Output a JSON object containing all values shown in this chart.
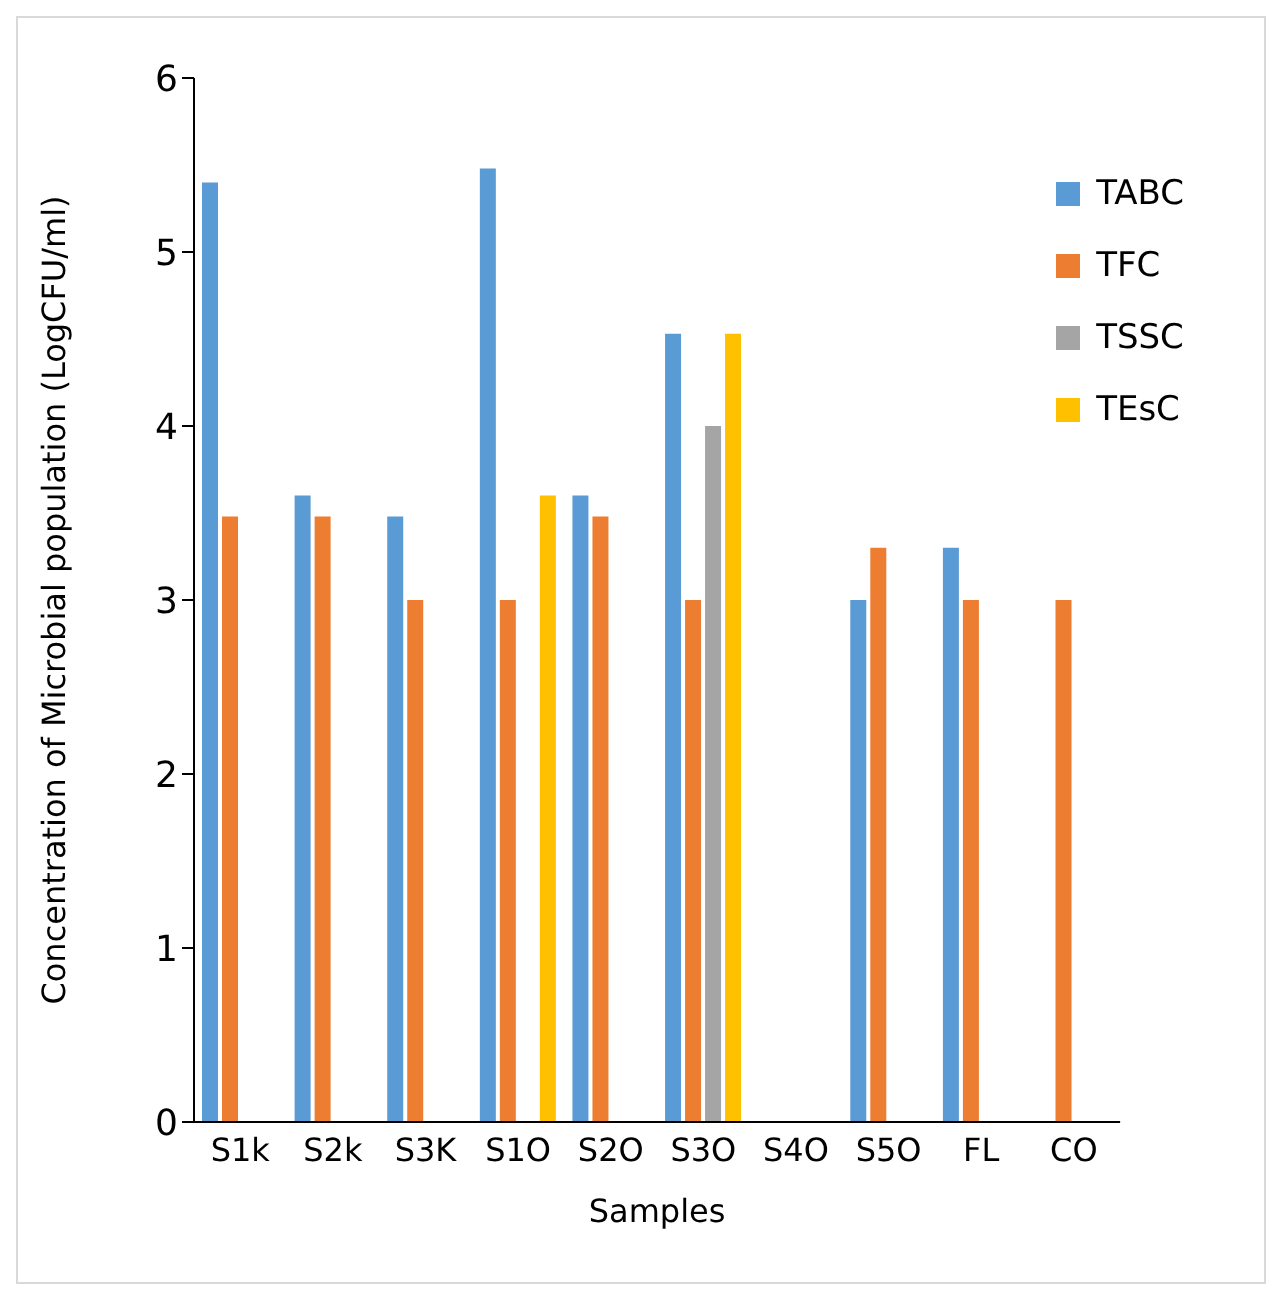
{
  "chart_data": {
    "type": "bar",
    "xlabel": "Samples",
    "ylabel": "Concentration of Microbial population  (LogCFU/ml)",
    "categories": [
      "S1k",
      "S2k",
      "S3K",
      "S1O",
      "S2O",
      "S3O",
      "S4O",
      "S5O",
      "FL",
      "CO"
    ],
    "series": [
      {
        "name": "TABC",
        "color": "#5b9bd5",
        "values": [
          5.4,
          3.6,
          3.48,
          5.48,
          3.6,
          4.53,
          null,
          3.0,
          3.3,
          null
        ]
      },
      {
        "name": "TFC",
        "color": "#ed7d31",
        "values": [
          3.48,
          3.48,
          3.0,
          3.0,
          3.48,
          3.0,
          null,
          3.3,
          3.0,
          3.0
        ]
      },
      {
        "name": "TSSC",
        "color": "#a5a5a5",
        "values": [
          null,
          null,
          null,
          null,
          null,
          4.0,
          null,
          null,
          null,
          null
        ]
      },
      {
        "name": "TEsC",
        "color": "#ffc000",
        "values": [
          null,
          null,
          null,
          3.6,
          null,
          4.53,
          null,
          null,
          null,
          null
        ]
      }
    ],
    "ylim": [
      0,
      6
    ],
    "yticks": [
      0,
      1,
      2,
      3,
      4,
      5,
      6
    ],
    "grid": false,
    "legend": "top right"
  }
}
